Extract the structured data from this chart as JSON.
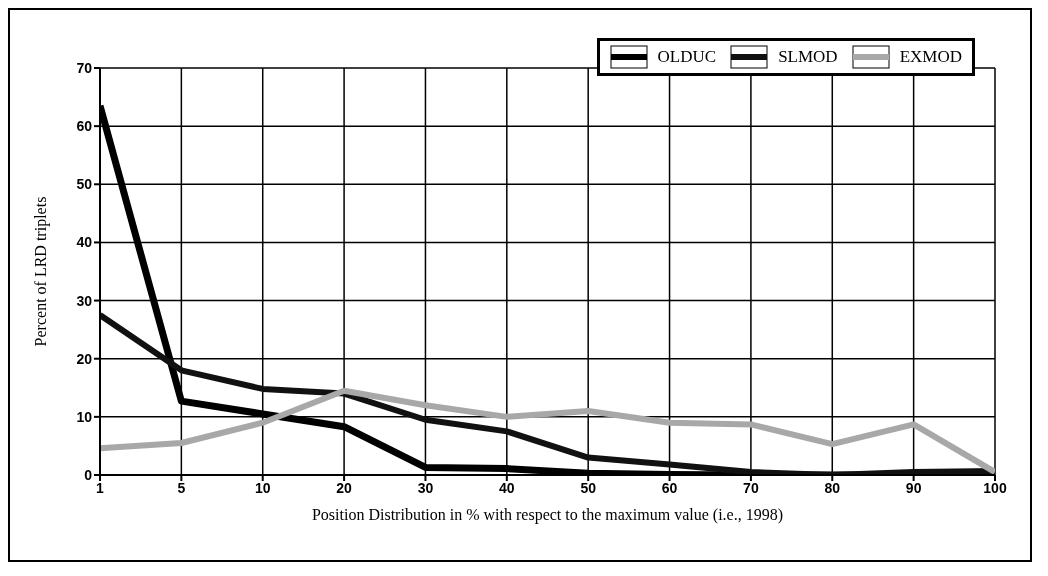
{
  "chart_data": {
    "type": "line",
    "xlabel": "Position Distribution in % with respect to the maximum value (i.e., 1998)",
    "ylabel": "Percent of LRD triplets",
    "categories": [
      "1",
      "5",
      "10",
      "20",
      "30",
      "40",
      "50",
      "60",
      "70",
      "80",
      "90",
      "100"
    ],
    "series": [
      {
        "name": "OLDUC",
        "color": "#000000",
        "values": [
          63.5,
          12.7,
          10.5,
          8.3,
          1.3,
          1.1,
          0.3,
          0.1,
          0,
          0,
          0,
          0
        ]
      },
      {
        "name": "SLMOD",
        "color": "#111111",
        "values": [
          27.5,
          18,
          14.8,
          14,
          9.5,
          7.5,
          3,
          1.8,
          0.5,
          0,
          0.5,
          0.7
        ]
      },
      {
        "name": "EXMOD",
        "color": "#a8a8a8",
        "values": [
          4.6,
          5.5,
          9,
          14.5,
          12,
          10,
          11,
          9,
          8.7,
          5.3,
          8.7,
          0.5
        ]
      }
    ],
    "ylim": [
      0,
      70
    ],
    "yticks": [
      0,
      10,
      20,
      30,
      40,
      50,
      60,
      70
    ],
    "grid": true,
    "legend": "top right",
    "marker": "none",
    "line_style": "solid"
  }
}
